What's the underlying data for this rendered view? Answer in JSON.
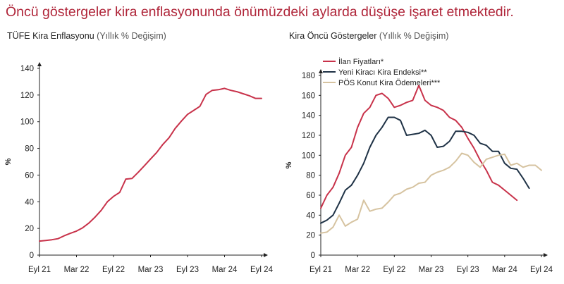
{
  "headline": "Öncü göstergeler kira enflasyonunda önümüzdeki aylarda düşüşe işaret etmektedir.",
  "chart_data": [
    {
      "type": "line",
      "title": "TÜFE Kira Enflasyonu",
      "subtitle": "(Yıllık % Değişim)",
      "ylabel": "%",
      "xlabel": "",
      "ylim": [
        0,
        140
      ],
      "yticks": [
        0,
        20,
        40,
        60,
        80,
        100,
        120,
        140
      ],
      "xlim": [
        0,
        36
      ],
      "xticks": [
        0,
        6,
        12,
        18,
        24,
        30,
        36
      ],
      "xticklabels": [
        "Eyl 21",
        "Mar 22",
        "Eyl 22",
        "Mar 23",
        "Eyl 23",
        "Mar 24",
        "Eyl 24"
      ],
      "x": [
        0,
        1,
        2,
        3,
        4,
        5,
        6,
        7,
        8,
        9,
        10,
        11,
        12,
        13,
        14,
        15,
        16,
        17,
        18,
        19,
        20,
        21,
        22,
        23,
        24,
        25,
        26,
        27,
        28,
        29,
        30,
        31,
        32,
        33,
        34,
        35,
        36
      ],
      "series": [
        {
          "values": [
            10.5,
            11,
            11.5,
            12.3,
            14.5,
            16.3,
            18,
            20.5,
            24,
            28.5,
            33.5,
            40,
            44,
            47,
            57,
            57.5,
            62,
            67,
            72,
            77,
            83,
            88,
            95,
            100.5,
            105.5,
            108.5,
            111.5,
            120.5,
            123.5,
            124,
            125,
            123.5,
            122.5,
            121,
            119.5,
            117.5,
            117.5
          ],
          "color": "#c8324a"
        }
      ]
    },
    {
      "type": "line",
      "title": "Kira Öncü Göstergeler",
      "subtitle": "(Yıllık % Değişim)",
      "ylabel": "%",
      "xlabel": "",
      "ylim": [
        0,
        180
      ],
      "yticks": [
        0,
        20,
        40,
        60,
        80,
        100,
        120,
        140,
        160,
        180
      ],
      "xlim": [
        0,
        36
      ],
      "xticks": [
        0,
        6,
        12,
        18,
        24,
        30,
        36
      ],
      "xticklabels": [
        "Eyl 21",
        "Mar 22",
        "Eyl 22",
        "Mar 23",
        "Eyl 23",
        "Mar 24",
        "Eyl 24"
      ],
      "x": [
        0,
        1,
        2,
        3,
        4,
        5,
        6,
        7,
        8,
        9,
        10,
        11,
        12,
        13,
        14,
        15,
        16,
        17,
        18,
        19,
        20,
        21,
        22,
        23,
        24,
        25,
        26,
        27,
        28,
        29,
        30,
        31,
        32,
        33,
        34,
        35,
        36
      ],
      "legend": "top-left",
      "series": [
        {
          "name": "İlan Fiyatları*",
          "color": "#c8324a",
          "values": [
            47,
            60,
            68,
            82,
            100,
            108,
            128,
            142,
            148,
            160,
            162,
            157,
            148,
            150,
            153,
            155,
            170,
            155,
            150,
            148,
            145,
            138,
            135,
            128,
            117,
            107,
            95,
            85,
            73,
            70,
            65,
            60,
            55,
            null,
            null,
            null,
            null
          ]
        },
        {
          "name": "Yeni Kiracı Kira Endeksi**",
          "color": "#1f3246",
          "values": [
            32,
            35,
            40,
            52,
            65,
            70,
            80,
            92,
            108,
            120,
            128,
            138,
            138,
            135,
            120,
            121,
            122,
            125,
            120,
            108,
            109,
            114,
            124,
            124,
            123,
            120,
            112,
            110,
            104,
            104,
            92,
            87,
            86,
            77,
            67,
            null,
            null
          ]
        },
        {
          "name": "PÖS Konut Kira Ödemeleri***",
          "color": "#d6c3a0",
          "values": [
            22,
            23,
            28,
            40,
            29,
            33,
            36,
            55,
            44,
            46,
            47,
            53,
            60,
            62,
            66,
            68,
            72,
            73,
            80,
            83,
            85,
            88,
            94,
            102,
            100,
            93,
            88,
            96,
            98,
            100,
            101,
            90,
            92,
            88,
            90,
            90,
            85
          ]
        }
      ]
    }
  ]
}
